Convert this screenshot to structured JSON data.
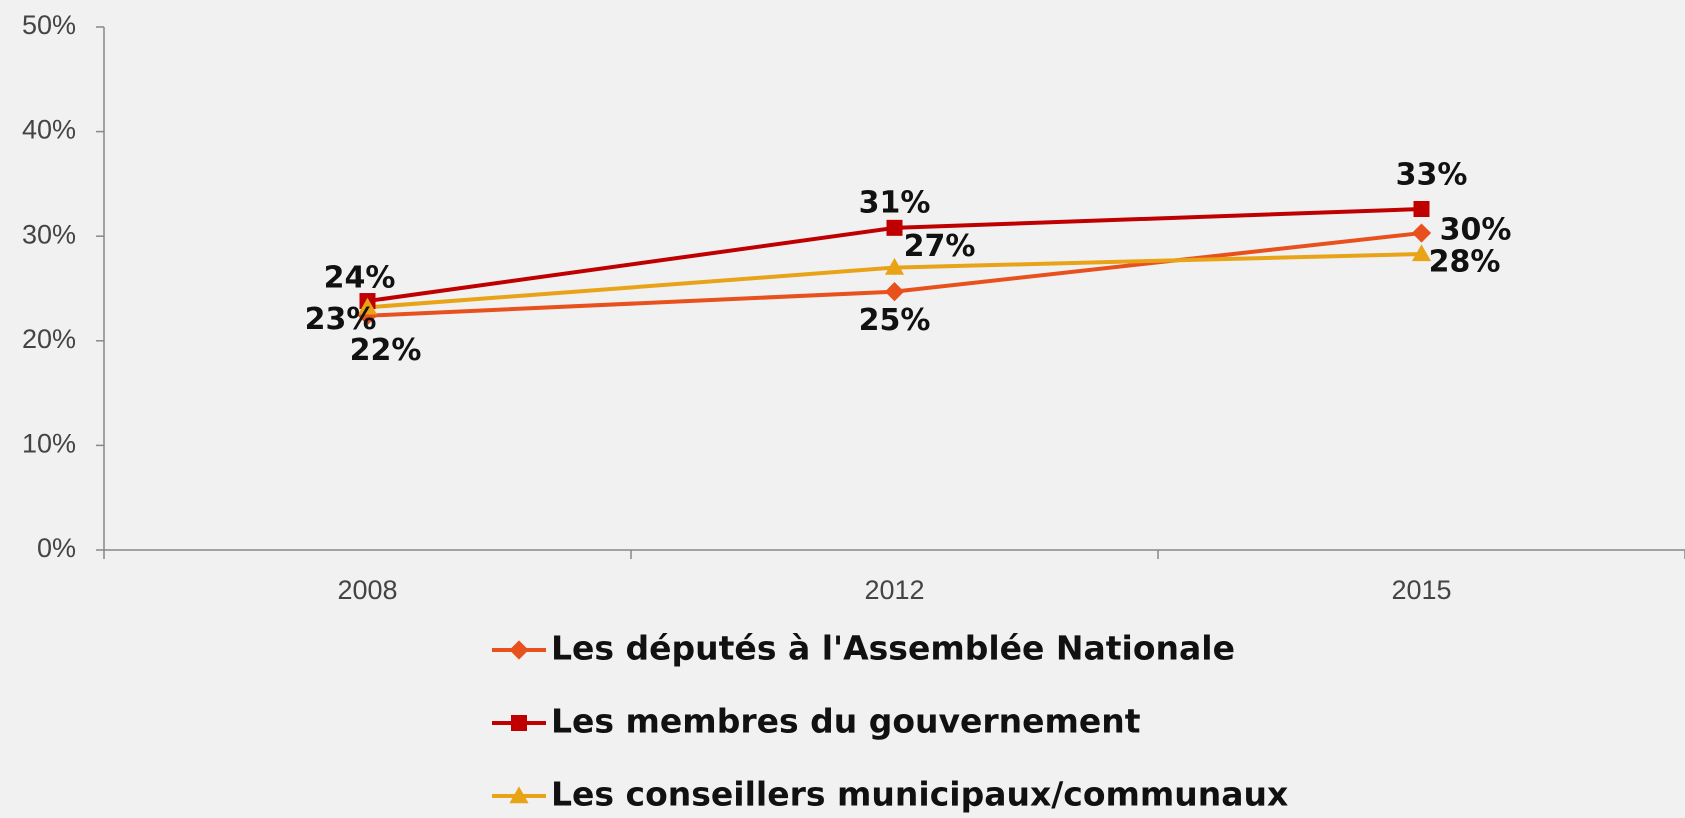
{
  "chart_data": {
    "type": "line",
    "categories": [
      "2008",
      "2012",
      "2015"
    ],
    "series": [
      {
        "name": "Les députés à l'Assemblée Nationale",
        "color": "#e8501e",
        "marker": "diamond",
        "values": [
          22.4,
          24.7,
          30.3
        ],
        "value_labels": [
          "22%",
          "25%",
          "30%"
        ]
      },
      {
        "name": "Les membres du gouvernement",
        "color": "#c00000",
        "marker": "square",
        "values": [
          23.8,
          30.8,
          32.6
        ],
        "value_labels": [
          "24%",
          "31%",
          "33%"
        ]
      },
      {
        "name": "Les conseillers municipaux/communaux",
        "color": "#e8a317",
        "marker": "triangle",
        "values": [
          23.2,
          27.0,
          28.3
        ],
        "value_labels": [
          "23%",
          "27%",
          "28%"
        ]
      }
    ],
    "ylim": [
      0,
      50
    ],
    "yticks": [
      {
        "value": 0,
        "label": "0%"
      },
      {
        "value": 10,
        "label": "10%"
      },
      {
        "value": 20,
        "label": "20%"
      },
      {
        "value": 30,
        "label": "30%"
      },
      {
        "value": 40,
        "label": "40%"
      },
      {
        "value": 50,
        "label": "50%"
      }
    ],
    "legend": "bottom"
  }
}
